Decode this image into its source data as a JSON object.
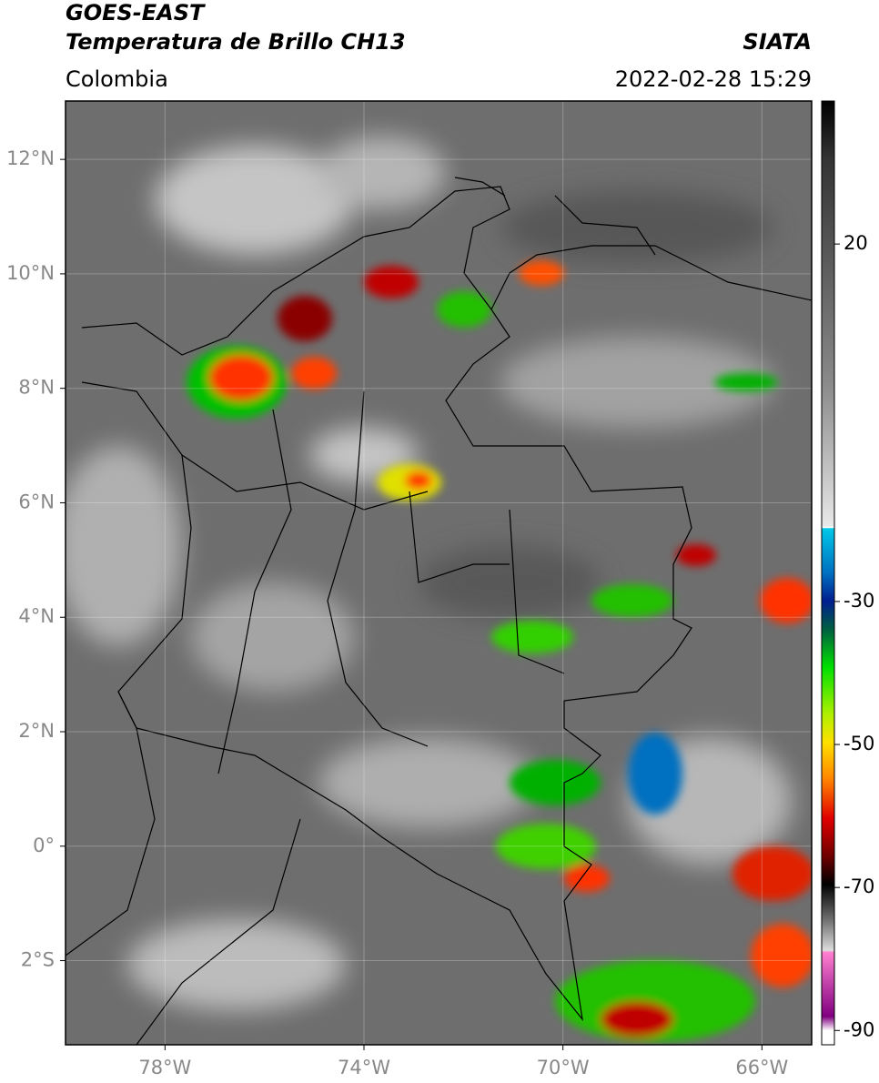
{
  "header": {
    "title": "GOES-EAST",
    "subtitle": "Temperatura de Brillo CH13",
    "source": "SIATA",
    "region": "Colombia",
    "datetime": "2022-02-28 15:29"
  },
  "map": {
    "xlim": [
      -80,
      -65
    ],
    "ylim": [
      -3.47,
      13.02
    ],
    "xticks": [
      {
        "value": -78,
        "label": "78°W"
      },
      {
        "value": -74,
        "label": "74°W"
      },
      {
        "value": -70,
        "label": "70°W"
      },
      {
        "value": -66,
        "label": "66°W"
      }
    ],
    "yticks": [
      {
        "value": 12,
        "label": "12°N"
      },
      {
        "value": 10,
        "label": "10°N"
      },
      {
        "value": 8,
        "label": "8°N"
      },
      {
        "value": 6,
        "label": "6°N"
      },
      {
        "value": 4,
        "label": "4°N"
      },
      {
        "value": 2,
        "label": "2°N"
      },
      {
        "value": 0,
        "label": "0°"
      },
      {
        "value": -2,
        "label": "2°S"
      }
    ],
    "grid": true
  },
  "colorbar": {
    "clim": [
      -92,
      40
    ],
    "ticks": [
      20,
      -30,
      -50,
      -70,
      -90
    ]
  }
}
